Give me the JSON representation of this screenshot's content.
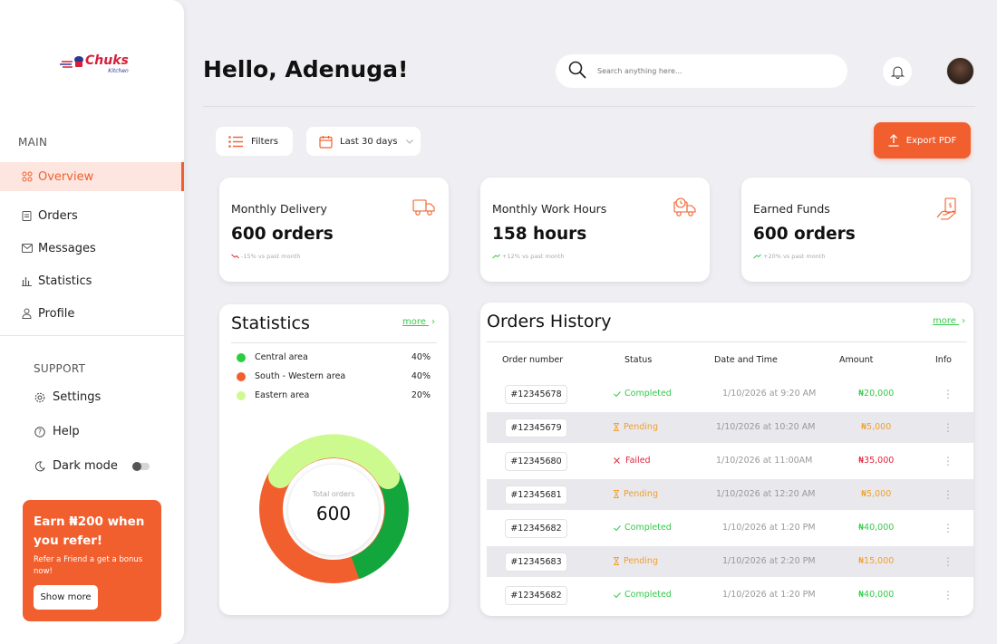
{
  "brand": {
    "name": "Chuks",
    "sub": "Kitchen"
  },
  "sidebar": {
    "main_label": "MAIN",
    "items": [
      {
        "label": "Overview",
        "icon": "grid-icon"
      },
      {
        "label": "Orders",
        "icon": "clipboard-icon"
      },
      {
        "label": "Messages",
        "icon": "mail-icon"
      },
      {
        "label": "Statistics",
        "icon": "bar-chart-icon"
      },
      {
        "label": "Profile",
        "icon": "user-icon"
      }
    ],
    "support_label": "SUPPORT",
    "support_items": [
      {
        "label": "Settings",
        "icon": "gear-icon"
      },
      {
        "label": "Help",
        "icon": "help-icon"
      },
      {
        "label": "Dark mode",
        "icon": "moon-icon"
      }
    ],
    "promo": {
      "title": "Earn ₦200 when you refer!",
      "text": "Refer a Friend a get a bonus now!",
      "button": "Show more"
    }
  },
  "header": {
    "greeting": "Hello, Adenuga!",
    "search_placeholder": "Search anything here..."
  },
  "toolbar": {
    "filters": "Filters",
    "range": "Last 30 days",
    "export": "Export PDF"
  },
  "stats": [
    {
      "title": "Monthly Delivery",
      "value": "600 orders",
      "sub": "-15% vs past month",
      "trend": "down"
    },
    {
      "title": "Monthly Work Hours",
      "value": "158 hours",
      "sub": "+12% vs past month",
      "trend": "up"
    },
    {
      "title": "Earned Funds",
      "value": "600 orders",
      "sub": "+20% vs past month",
      "trend": "up"
    }
  ],
  "statistics": {
    "title": "Statistics",
    "more": "more",
    "legend": [
      {
        "label": "Central area",
        "pct": "40%",
        "color": "#2ecc40"
      },
      {
        "label": "South - Western area",
        "pct": "40%",
        "color": "#f25f2e"
      },
      {
        "label": "Eastern area",
        "pct": "20%",
        "color": "#cdfa8e"
      }
    ],
    "center_label": "Total orders",
    "center_value": "600",
    "colors": {
      "green": "#12a63d",
      "orange": "#f25f2e",
      "light": "#cdfa8e"
    }
  },
  "orders": {
    "title": "Orders History",
    "more": "more",
    "columns": [
      "Order number",
      "Status",
      "Date and Time",
      "Amount",
      "Info"
    ],
    "rows": [
      {
        "id": "#12345678",
        "status": "Completed",
        "date": "1/10/2026 at 9:20 AM",
        "amount": "₦20,000"
      },
      {
        "id": "#12345679",
        "status": "Pending",
        "date": "1/10/2026 at 10:20 AM",
        "amount": "₦5,000"
      },
      {
        "id": "#12345680",
        "status": "Failed",
        "date": "1/10/2026 at 11:00AM",
        "amount": "₦35,000"
      },
      {
        "id": "#12345681",
        "status": "Pending",
        "date": "1/10/2026 at 12:20 AM",
        "amount": "₦5,000"
      },
      {
        "id": "#12345682",
        "status": "Completed",
        "date": "1/10/2026 at 1:20 PM",
        "amount": "₦40,000"
      },
      {
        "id": "#12345683",
        "status": "Pending",
        "date": "1/10/2026 at 2:20 PM",
        "amount": "₦15,000"
      },
      {
        "id": "#12345682",
        "status": "Completed",
        "date": "1/10/2026 at 1:20 PM",
        "amount": "₦40,000"
      }
    ],
    "status_colors": {
      "Completed": "#35c94a",
      "Pending": "#f0a030",
      "Failed": "#e0263b"
    },
    "amount_colors": {
      "Completed": "#35c94a",
      "Pending": "#f0a030",
      "Failed": "#e0263b"
    }
  }
}
